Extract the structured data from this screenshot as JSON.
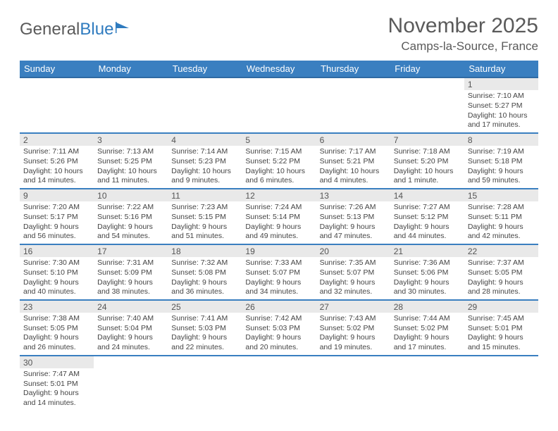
{
  "logo": {
    "text1": "General",
    "text2": "Blue"
  },
  "title": {
    "month": "November 2025",
    "location": "Camps-la-Source, France"
  },
  "colors": {
    "header_bg": "#3a7fc0",
    "header_border": "#2f6aa3",
    "row_border": "#3a7fc0",
    "daynum_bg": "#e9e9e9",
    "text_gray": "#5a5a5a",
    "logo_blue": "#2f7bbf"
  },
  "weekdays": [
    "Sunday",
    "Monday",
    "Tuesday",
    "Wednesday",
    "Thursday",
    "Friday",
    "Saturday"
  ],
  "weeks": [
    [
      null,
      null,
      null,
      null,
      null,
      null,
      {
        "d": "1",
        "sr": "7:10 AM",
        "ss": "5:27 PM",
        "dl": "10 hours and 17 minutes."
      }
    ],
    [
      {
        "d": "2",
        "sr": "7:11 AM",
        "ss": "5:26 PM",
        "dl": "10 hours and 14 minutes."
      },
      {
        "d": "3",
        "sr": "7:13 AM",
        "ss": "5:25 PM",
        "dl": "10 hours and 11 minutes."
      },
      {
        "d": "4",
        "sr": "7:14 AM",
        "ss": "5:23 PM",
        "dl": "10 hours and 9 minutes."
      },
      {
        "d": "5",
        "sr": "7:15 AM",
        "ss": "5:22 PM",
        "dl": "10 hours and 6 minutes."
      },
      {
        "d": "6",
        "sr": "7:17 AM",
        "ss": "5:21 PM",
        "dl": "10 hours and 4 minutes."
      },
      {
        "d": "7",
        "sr": "7:18 AM",
        "ss": "5:20 PM",
        "dl": "10 hours and 1 minute."
      },
      {
        "d": "8",
        "sr": "7:19 AM",
        "ss": "5:18 PM",
        "dl": "9 hours and 59 minutes."
      }
    ],
    [
      {
        "d": "9",
        "sr": "7:20 AM",
        "ss": "5:17 PM",
        "dl": "9 hours and 56 minutes."
      },
      {
        "d": "10",
        "sr": "7:22 AM",
        "ss": "5:16 PM",
        "dl": "9 hours and 54 minutes."
      },
      {
        "d": "11",
        "sr": "7:23 AM",
        "ss": "5:15 PM",
        "dl": "9 hours and 51 minutes."
      },
      {
        "d": "12",
        "sr": "7:24 AM",
        "ss": "5:14 PM",
        "dl": "9 hours and 49 minutes."
      },
      {
        "d": "13",
        "sr": "7:26 AM",
        "ss": "5:13 PM",
        "dl": "9 hours and 47 minutes."
      },
      {
        "d": "14",
        "sr": "7:27 AM",
        "ss": "5:12 PM",
        "dl": "9 hours and 44 minutes."
      },
      {
        "d": "15",
        "sr": "7:28 AM",
        "ss": "5:11 PM",
        "dl": "9 hours and 42 minutes."
      }
    ],
    [
      {
        "d": "16",
        "sr": "7:30 AM",
        "ss": "5:10 PM",
        "dl": "9 hours and 40 minutes."
      },
      {
        "d": "17",
        "sr": "7:31 AM",
        "ss": "5:09 PM",
        "dl": "9 hours and 38 minutes."
      },
      {
        "d": "18",
        "sr": "7:32 AM",
        "ss": "5:08 PM",
        "dl": "9 hours and 36 minutes."
      },
      {
        "d": "19",
        "sr": "7:33 AM",
        "ss": "5:07 PM",
        "dl": "9 hours and 34 minutes."
      },
      {
        "d": "20",
        "sr": "7:35 AM",
        "ss": "5:07 PM",
        "dl": "9 hours and 32 minutes."
      },
      {
        "d": "21",
        "sr": "7:36 AM",
        "ss": "5:06 PM",
        "dl": "9 hours and 30 minutes."
      },
      {
        "d": "22",
        "sr": "7:37 AM",
        "ss": "5:05 PM",
        "dl": "9 hours and 28 minutes."
      }
    ],
    [
      {
        "d": "23",
        "sr": "7:38 AM",
        "ss": "5:05 PM",
        "dl": "9 hours and 26 minutes."
      },
      {
        "d": "24",
        "sr": "7:40 AM",
        "ss": "5:04 PM",
        "dl": "9 hours and 24 minutes."
      },
      {
        "d": "25",
        "sr": "7:41 AM",
        "ss": "5:03 PM",
        "dl": "9 hours and 22 minutes."
      },
      {
        "d": "26",
        "sr": "7:42 AM",
        "ss": "5:03 PM",
        "dl": "9 hours and 20 minutes."
      },
      {
        "d": "27",
        "sr": "7:43 AM",
        "ss": "5:02 PM",
        "dl": "9 hours and 19 minutes."
      },
      {
        "d": "28",
        "sr": "7:44 AM",
        "ss": "5:02 PM",
        "dl": "9 hours and 17 minutes."
      },
      {
        "d": "29",
        "sr": "7:45 AM",
        "ss": "5:01 PM",
        "dl": "9 hours and 15 minutes."
      }
    ],
    [
      {
        "d": "30",
        "sr": "7:47 AM",
        "ss": "5:01 PM",
        "dl": "9 hours and 14 minutes."
      },
      null,
      null,
      null,
      null,
      null,
      null
    ]
  ],
  "labels": {
    "sunrise": "Sunrise: ",
    "sunset": "Sunset: ",
    "daylight": "Daylight: "
  }
}
